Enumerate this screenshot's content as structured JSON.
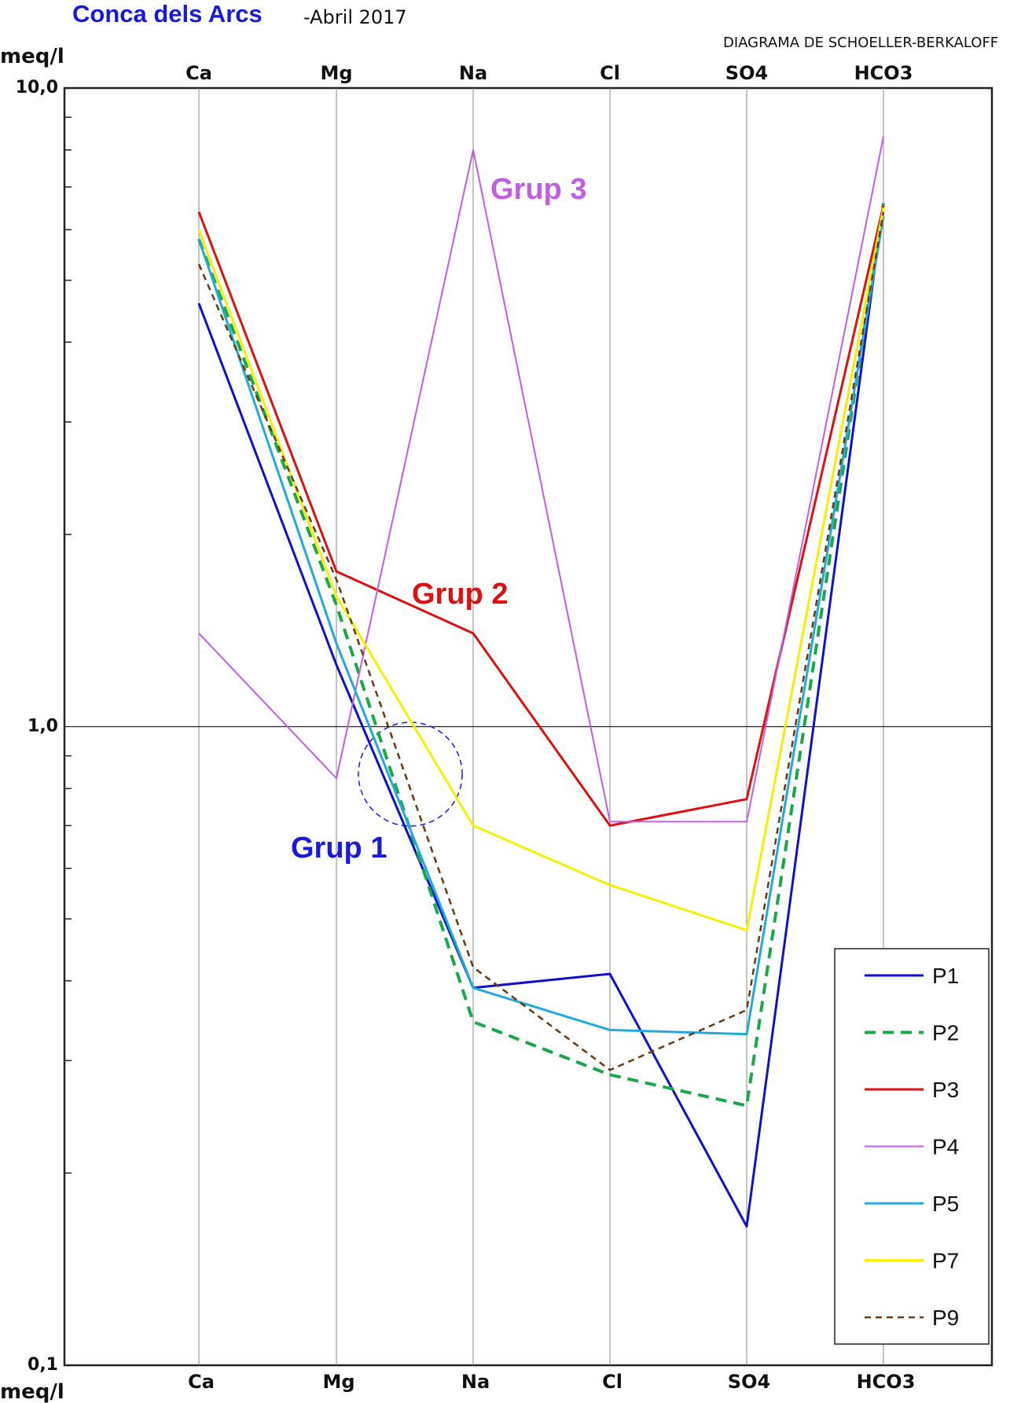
{
  "header": {
    "title": "Conca dels Arcs",
    "subtitle": "-Abril 2017",
    "diagram_name": "DIAGRAMA DE SCHOELLER-BERKALOFF",
    "title_color": "#1a1adb"
  },
  "chart_data": {
    "type": "line",
    "title": "Conca dels Arcs",
    "subtitle": "-Abril 2017",
    "xlabel": "",
    "ylabel": "meq/l",
    "yscale": "log",
    "ylim": [
      0.1,
      10.0
    ],
    "y_tick_labels": [
      "10,0",
      "1,0",
      "0,1"
    ],
    "y_tick_values": [
      10.0,
      1.0,
      0.1
    ],
    "grid": true,
    "legend_position": "bottom-right",
    "categories": [
      "Ca",
      "Mg",
      "Na",
      "Cl",
      "SO4",
      "HCO3"
    ],
    "series": [
      {
        "name": "P1",
        "color": "#1010cc",
        "dash": "solid",
        "values": [
          4.6,
          1.25,
          0.39,
          0.41,
          0.165,
          6.6
        ]
      },
      {
        "name": "P2",
        "color": "#1aa84a",
        "dash": "dashed",
        "values": [
          5.8,
          1.55,
          0.345,
          0.285,
          0.255,
          6.6
        ]
      },
      {
        "name": "P3",
        "color": "#dd1111",
        "dash": "solid",
        "values": [
          6.4,
          1.75,
          1.4,
          0.7,
          0.77,
          6.55
        ]
      },
      {
        "name": "P4",
        "color": "#c060e0",
        "dash": "solid",
        "values": [
          1.4,
          0.83,
          8.0,
          0.71,
          0.71,
          8.4
        ]
      },
      {
        "name": "P5",
        "color": "#22aadd",
        "dash": "solid",
        "values": [
          5.8,
          1.35,
          0.39,
          0.335,
          0.33,
          6.3
        ]
      },
      {
        "name": "P7",
        "color": "#f5f000",
        "dash": "solid",
        "values": [
          6.0,
          1.6,
          0.7,
          0.565,
          0.48,
          6.5
        ]
      },
      {
        "name": "P9",
        "color": "#6b3a10",
        "dash": "dotted",
        "values": [
          5.3,
          1.7,
          0.42,
          0.29,
          0.36,
          6.4
        ]
      }
    ],
    "annotations": [
      {
        "text": "Grup 3",
        "color": "#c060e0"
      },
      {
        "text": "Grup 2",
        "color": "#dd1111"
      },
      {
        "text": "Grup 1",
        "color": "#1a1adb"
      }
    ]
  }
}
